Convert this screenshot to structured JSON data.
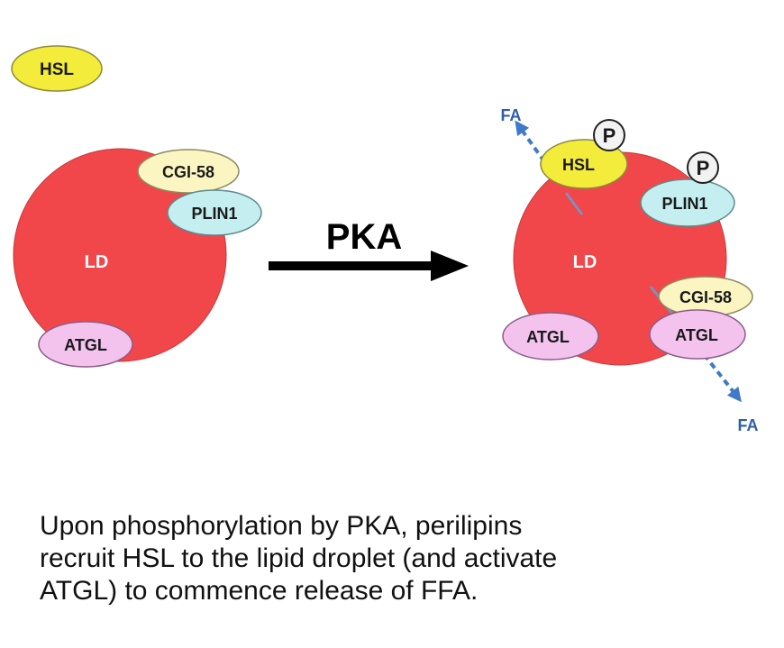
{
  "left_state": {
    "free_protein": "HSL",
    "droplet": "LD",
    "proteins": [
      "CGI-58",
      "PLIN1",
      "ATGL"
    ]
  },
  "arrow": {
    "label": "PKA"
  },
  "right_state": {
    "droplet": "LD",
    "proteins": [
      "HSL",
      "PLIN1",
      "CGI-58",
      "ATGL",
      "ATGL"
    ],
    "phospho_marks": [
      "P",
      "P"
    ],
    "products": [
      "FA",
      "FA"
    ]
  },
  "caption": {
    "lines": [
      "Upon phosphorylation by PKA, perilipins",
      "recruit HSL to the lipid droplet (and activate",
      "ATGL) to commence release of FFA."
    ]
  },
  "colors": {
    "droplet": "#f2474a",
    "hsl": "#f3ec3a",
    "cgi58": "#fbf5c2",
    "plin1": "#c4eef0",
    "atgl": "#f3c3ee",
    "fa_arrow": "#3f7ac8",
    "pka_arrow": "#000000"
  }
}
